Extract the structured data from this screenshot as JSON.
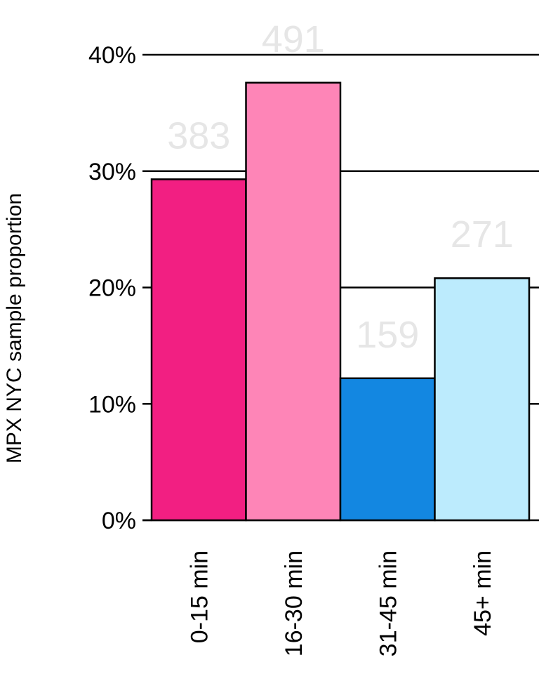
{
  "chart_data": {
    "type": "bar",
    "categories": [
      "0-15 min",
      "16-30 min",
      "31-45 min",
      "45+ min"
    ],
    "values": [
      29.3,
      37.6,
      12.2,
      20.8
    ],
    "counts": [
      "383",
      "491",
      "159",
      "271"
    ],
    "colors": [
      "#f21f82",
      "#fe85b7",
      "#1387e1",
      "#bcebfd"
    ],
    "title": "",
    "xlabel": "",
    "ylabel": "MPX NYC sample proportion",
    "ylim": [
      0,
      40
    ],
    "yticks": [
      0,
      10,
      20,
      30,
      40
    ],
    "ytick_labels": [
      "0%",
      "10%",
      "20%",
      "30%",
      "40%"
    ],
    "grid": true
  }
}
